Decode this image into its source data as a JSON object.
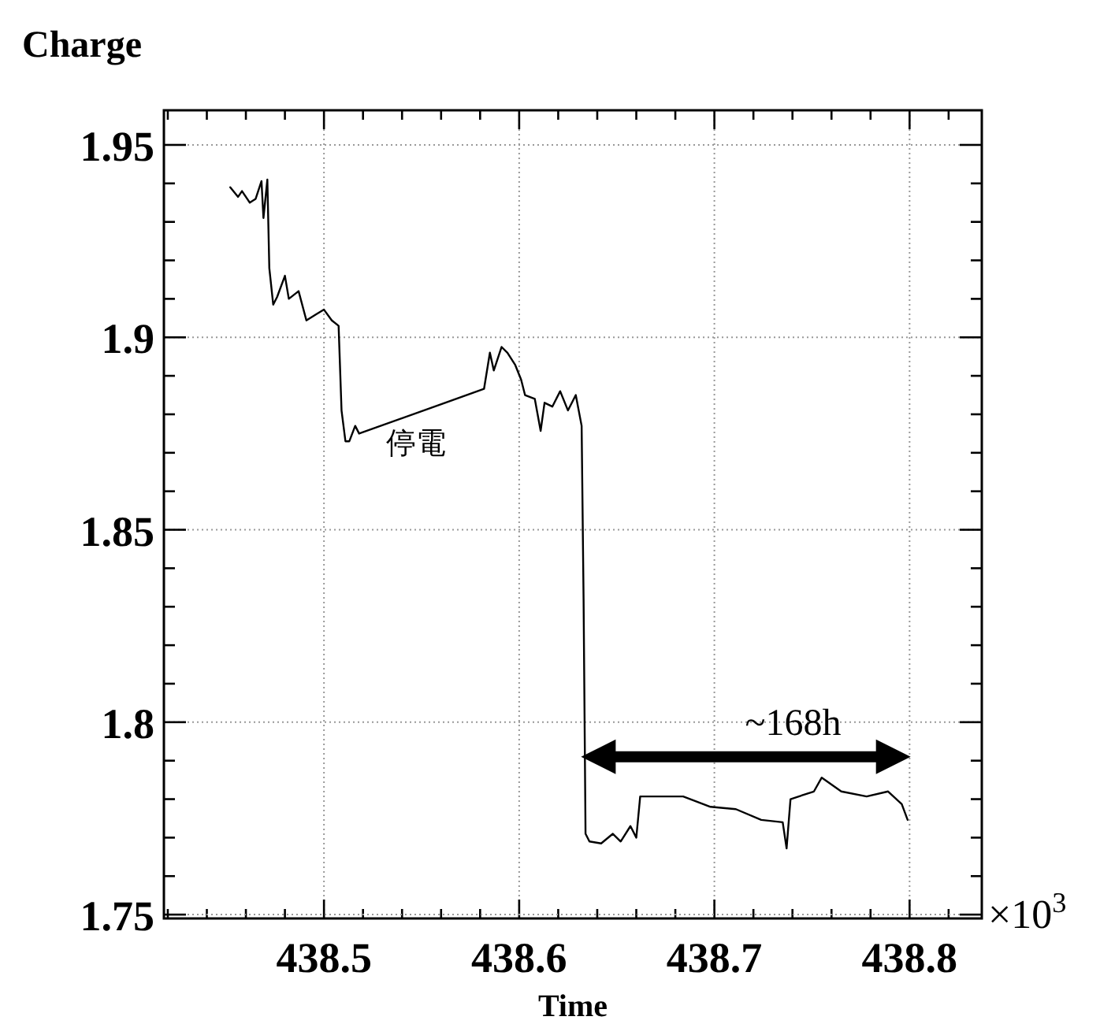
{
  "chart_data": {
    "type": "line",
    "ylabel": "Charge",
    "xlabel": "Time",
    "x": [
      438.452,
      438.456,
      438.458,
      438.462,
      438.465,
      438.468,
      438.469,
      438.471,
      438.472,
      438.474,
      438.476,
      438.48,
      438.482,
      438.487,
      438.491,
      438.496,
      438.5,
      438.504,
      438.5075,
      438.509,
      438.511,
      438.513,
      438.516,
      438.518,
      438.582,
      438.585,
      438.587,
      438.591,
      438.594,
      438.598,
      438.601,
      438.603,
      438.608,
      438.611,
      438.613,
      438.617,
      438.621,
      438.625,
      438.629,
      438.632,
      438.633,
      438.634,
      438.636,
      438.642,
      438.648,
      438.652,
      438.657,
      438.66,
      438.662,
      438.668,
      438.684,
      438.698,
      438.711,
      438.724,
      438.735,
      438.737,
      438.739,
      438.751,
      438.755,
      438.765,
      438.778,
      438.789,
      438.796,
      438.799
    ],
    "series": [
      {
        "color": "#000000",
        "values": [
          1.939,
          1.9365,
          1.938,
          1.935,
          1.936,
          1.9406,
          1.931,
          1.941,
          1.918,
          1.9085,
          1.9105,
          1.916,
          1.91,
          1.912,
          1.9044,
          1.906,
          1.9072,
          1.9044,
          1.903,
          1.881,
          1.873,
          1.873,
          1.877,
          1.875,
          1.8866,
          1.896,
          1.8914,
          1.8975,
          1.896,
          1.8928,
          1.889,
          1.885,
          1.884,
          1.8757,
          1.883,
          1.882,
          1.886,
          1.881,
          1.885,
          1.877,
          1.832,
          1.771,
          1.769,
          1.7685,
          1.771,
          1.769,
          1.773,
          1.77,
          1.7807,
          1.7807,
          1.7807,
          1.778,
          1.7774,
          1.7746,
          1.774,
          1.7672,
          1.78,
          1.782,
          1.7856,
          1.782,
          1.7807,
          1.782,
          1.7787,
          1.7746
        ]
      }
    ],
    "xlim": [
      438.418,
      438.837
    ],
    "ylim": [
      1.749,
      1.959
    ],
    "xticks": [
      {
        "value": 438.42,
        "label": null
      },
      {
        "value": 438.44,
        "label": null
      },
      {
        "value": 438.46,
        "label": null
      },
      {
        "value": 438.48,
        "label": null
      },
      438.5,
      {
        "value": 438.52,
        "label": null
      },
      {
        "value": 438.54,
        "label": null
      },
      {
        "value": 438.56,
        "label": null
      },
      {
        "value": 438.58,
        "label": null
      },
      438.6,
      {
        "value": 438.62,
        "label": null
      },
      {
        "value": 438.64,
        "label": null
      },
      {
        "value": 438.66,
        "label": null
      },
      {
        "value": 438.68,
        "label": null
      },
      438.7,
      {
        "value": 438.72,
        "label": null
      },
      {
        "value": 438.74,
        "label": null
      },
      {
        "value": 438.76,
        "label": null
      },
      {
        "value": 438.78,
        "label": null
      },
      438.8,
      {
        "value": 438.82,
        "label": null
      }
    ],
    "yticks": [
      1.75,
      {
        "value": 1.76,
        "label": null
      },
      {
        "value": 1.77,
        "label": null
      },
      {
        "value": 1.78,
        "label": null
      },
      {
        "value": 1.79,
        "label": null
      },
      1.8,
      {
        "value": 1.81,
        "label": null
      },
      {
        "value": 1.82,
        "label": null
      },
      {
        "value": 1.83,
        "label": null
      },
      {
        "value": 1.84,
        "label": null
      },
      1.85,
      {
        "value": 1.86,
        "label": null
      },
      {
        "value": 1.87,
        "label": null
      },
      {
        "value": 1.88,
        "label": null
      },
      {
        "value": 1.89,
        "label": null
      },
      1.9,
      {
        "value": 1.91,
        "label": null
      },
      {
        "value": 1.92,
        "label": null
      },
      {
        "value": 1.93,
        "label": null
      },
      {
        "value": 1.94,
        "label": null
      },
      1.95
    ],
    "grid": true,
    "line_style": "solid",
    "annotations": [
      {
        "text": "停電",
        "x": 438.547,
        "y": 1.879
      },
      "~168h",
      "×10$^{3}$"
    ]
  }
}
